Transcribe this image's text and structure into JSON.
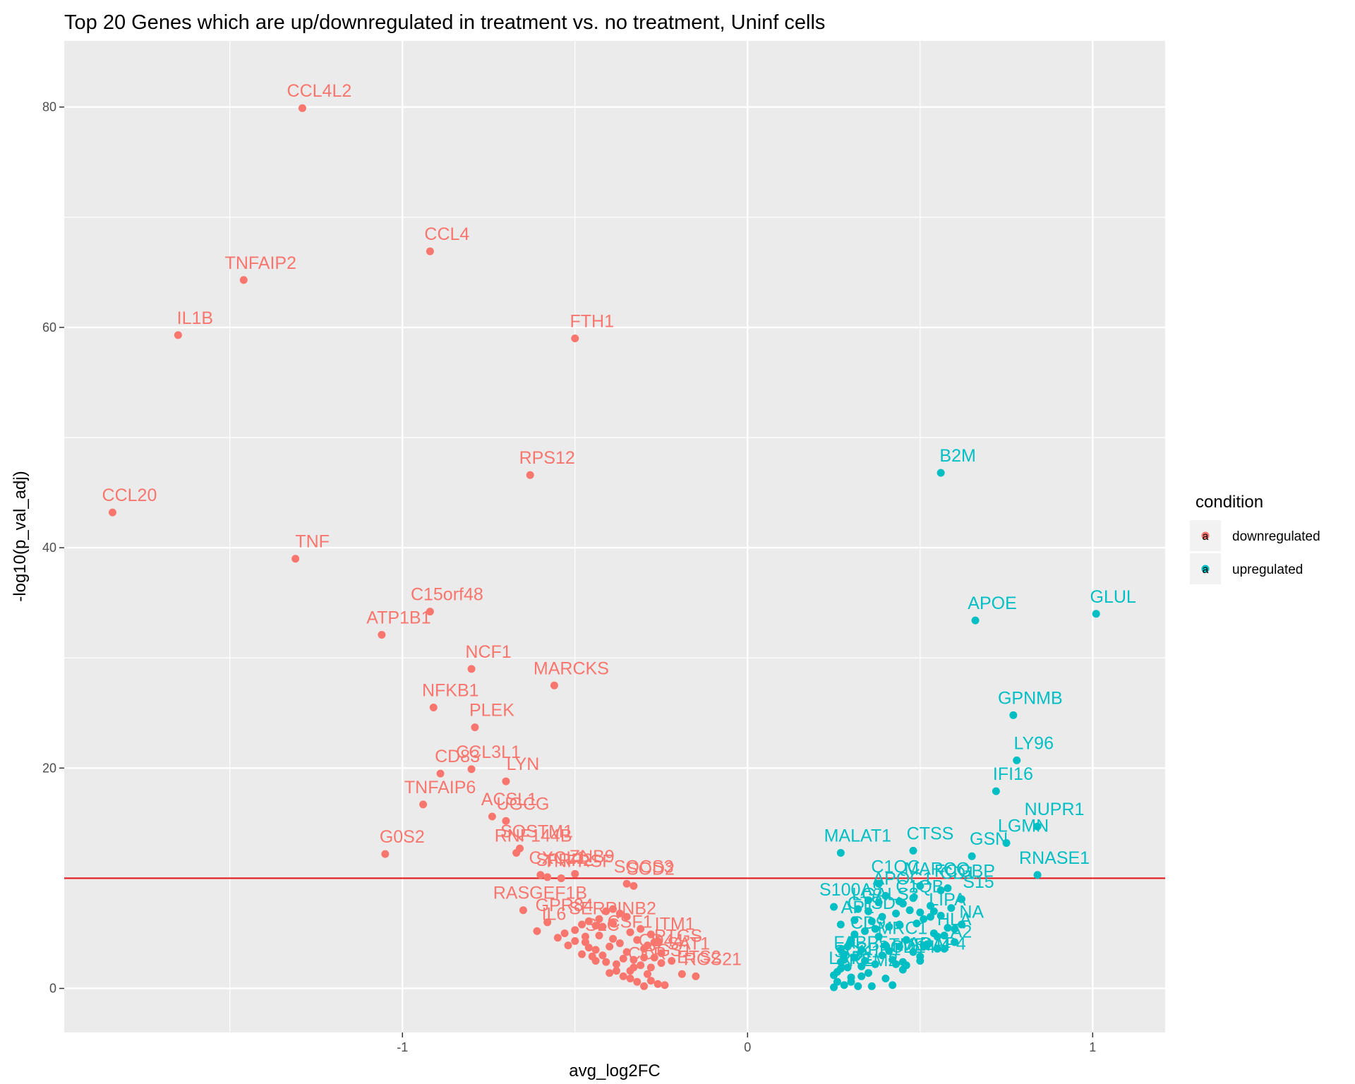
{
  "chart_data": {
    "type": "scatter",
    "title": "Top 20 Genes which are up/downregulated in treatment vs. no treatment, Uninf cells",
    "xlabel": "avg_log2FC",
    "ylabel": "-log10(p_val_adj)",
    "xlim": [
      -1.98,
      1.21
    ],
    "ylim": [
      -4,
      86
    ],
    "x_ticks": [
      -1,
      0,
      1
    ],
    "y_ticks": [
      0,
      20,
      40,
      60,
      80
    ],
    "threshold_y": 10,
    "grid": true,
    "legend": {
      "title": "condition",
      "position": "right",
      "key_glyph": "a",
      "entries": [
        {
          "label": "downregulated",
          "color": "#F8766D"
        },
        {
          "label": "upregulated",
          "color": "#00BFC4"
        }
      ]
    },
    "series": [
      {
        "name": "downregulated",
        "color": "#F8766D",
        "labeled_points": [
          {
            "label": "CCL4L2",
            "x": -1.29,
            "y": 79.9
          },
          {
            "label": "CCL4",
            "x": -0.92,
            "y": 66.9
          },
          {
            "label": "TNFAIP2",
            "x": -1.46,
            "y": 64.3
          },
          {
            "label": "IL1B",
            "x": -1.65,
            "y": 59.3
          },
          {
            "label": "FTH1",
            "x": -0.5,
            "y": 59.0
          },
          {
            "label": "RPS12",
            "x": -0.63,
            "y": 46.6
          },
          {
            "label": "CCL20",
            "x": -1.84,
            "y": 43.2
          },
          {
            "label": "TNF",
            "x": -1.31,
            "y": 39.0
          },
          {
            "label": "C15orf48",
            "x": -0.92,
            "y": 34.2
          },
          {
            "label": "ATP1B1",
            "x": -1.06,
            "y": 32.1
          },
          {
            "label": "NCF1",
            "x": -0.8,
            "y": 29.0
          },
          {
            "label": "MARCKS",
            "x": -0.56,
            "y": 27.5
          },
          {
            "label": "NFKB1",
            "x": -0.91,
            "y": 25.5
          },
          {
            "label": "PLEK",
            "x": -0.79,
            "y": 23.7
          },
          {
            "label": "CCL3L1",
            "x": -0.8,
            "y": 19.9
          },
          {
            "label": "CD83",
            "x": -0.89,
            "y": 19.5
          },
          {
            "label": "LYN",
            "x": -0.7,
            "y": 18.8
          },
          {
            "label": "TNFAIP6",
            "x": -0.94,
            "y": 16.7
          },
          {
            "label": "ACSL1",
            "x": -0.74,
            "y": 15.6
          },
          {
            "label": "UGCG",
            "x": -0.7,
            "y": 15.2
          },
          {
            "label": "SQSTM1",
            "x": -0.66,
            "y": 12.7
          },
          {
            "label": "RNF144B",
            "x": -0.67,
            "y": 12.3
          },
          {
            "label": "G0S2",
            "x": -1.05,
            "y": 12.2
          },
          {
            "label": "SFRP2",
            "x": -0.58,
            "y": 10.1
          },
          {
            "label": "TNFRSF",
            "x": -0.54,
            "y": 10.0
          },
          {
            "label": "CXCL1",
            "x": -0.6,
            "y": 10.3
          },
          {
            "label": "ZNB9",
            "x": -0.5,
            "y": 10.4
          },
          {
            "label": "SOCS3",
            "x": -0.35,
            "y": 9.5
          },
          {
            "label": "SOD2",
            "x": -0.33,
            "y": 9.3
          },
          {
            "label": "RASGEF1B",
            "x": -0.65,
            "y": 7.1
          },
          {
            "label": "GPR84",
            "x": -0.58,
            "y": 6.0
          },
          {
            "label": "IL6",
            "x": -0.61,
            "y": 5.2
          },
          {
            "label": "SERPINB2",
            "x": -0.44,
            "y": 5.7
          },
          {
            "label": "CSF1",
            "x": -0.39,
            "y": 4.5
          },
          {
            "label": "SLC",
            "x": -0.47,
            "y": 4.2
          },
          {
            "label": "ITM1",
            "x": -0.26,
            "y": 4.3
          },
          {
            "label": "SAT1",
            "x": -0.22,
            "y": 2.5
          },
          {
            "label": "CD44",
            "x": -0.3,
            "y": 2.8
          },
          {
            "label": "PTGS",
            "x": -0.25,
            "y": 3.2
          },
          {
            "label": "RGS1",
            "x": -0.28,
            "y": 1.9
          },
          {
            "label": "CCR",
            "x": -0.34,
            "y": 1.6
          },
          {
            "label": "ETS2",
            "x": -0.19,
            "y": 1.3
          },
          {
            "label": "RGS21",
            "x": -0.15,
            "y": 1.1
          }
        ],
        "points": [
          [
            -0.55,
            4.6
          ],
          [
            -0.52,
            3.9
          ],
          [
            -0.5,
            5.3
          ],
          [
            -0.48,
            3.1
          ],
          [
            -0.47,
            4.7
          ],
          [
            -0.46,
            6.1
          ],
          [
            -0.45,
            2.9
          ],
          [
            -0.44,
            3.5
          ],
          [
            -0.43,
            4.8
          ],
          [
            -0.42,
            5.6
          ],
          [
            -0.41,
            2.4
          ],
          [
            -0.4,
            3.8
          ],
          [
            -0.39,
            5.9
          ],
          [
            -0.38,
            1.6
          ],
          [
            -0.37,
            4.1
          ],
          [
            -0.36,
            2.7
          ],
          [
            -0.35,
            3.3
          ],
          [
            -0.34,
            5.1
          ],
          [
            -0.33,
            1.9
          ],
          [
            -0.32,
            4.4
          ],
          [
            -0.31,
            2.1
          ],
          [
            -0.3,
            3.6
          ],
          [
            -0.29,
            1.3
          ],
          [
            -0.28,
            4.9
          ],
          [
            -0.27,
            2.8
          ],
          [
            -0.26,
            0.4
          ],
          [
            -0.3,
            0.2
          ],
          [
            -0.32,
            0.6
          ],
          [
            -0.34,
            0.9
          ],
          [
            -0.36,
            1.1
          ],
          [
            -0.38,
            2.2
          ],
          [
            -0.4,
            1.4
          ],
          [
            -0.42,
            3.0
          ],
          [
            -0.44,
            2.5
          ],
          [
            -0.46,
            3.7
          ],
          [
            -0.33,
            2.6
          ],
          [
            -0.31,
            5.4
          ],
          [
            -0.29,
            3.9
          ],
          [
            -0.27,
            4.2
          ],
          [
            -0.25,
            2.3
          ],
          [
            -0.35,
            6.5
          ],
          [
            -0.37,
            6.8
          ],
          [
            -0.39,
            7.2
          ],
          [
            -0.41,
            7.0
          ],
          [
            -0.43,
            6.3
          ],
          [
            -0.48,
            5.8
          ],
          [
            -0.5,
            4.3
          ],
          [
            -0.53,
            5.0
          ],
          [
            -0.28,
            0.7
          ],
          [
            -0.24,
            0.3
          ]
        ]
      },
      {
        "name": "upregulated",
        "color": "#00BFC4",
        "labeled_points": [
          {
            "label": "B2M",
            "x": 0.56,
            "y": 46.8
          },
          {
            "label": "APOE",
            "x": 0.66,
            "y": 33.4
          },
          {
            "label": "GLUL",
            "x": 1.01,
            "y": 34.0
          },
          {
            "label": "GPNMB",
            "x": 0.77,
            "y": 24.8
          },
          {
            "label": "LY96",
            "x": 0.78,
            "y": 20.7
          },
          {
            "label": "IFI16",
            "x": 0.72,
            "y": 17.9
          },
          {
            "label": "NUPR1",
            "x": 0.84,
            "y": 14.7
          },
          {
            "label": "LGMN",
            "x": 0.75,
            "y": 13.2
          },
          {
            "label": "MALAT1",
            "x": 0.27,
            "y": 12.3
          },
          {
            "label": "CTSS",
            "x": 0.48,
            "y": 12.5
          },
          {
            "label": "GSN",
            "x": 0.65,
            "y": 12.0
          },
          {
            "label": "RNASE1",
            "x": 0.84,
            "y": 10.3
          },
          {
            "label": "C1QC",
            "x": 0.38,
            "y": 9.5
          },
          {
            "label": "MARCO",
            "x": 0.5,
            "y": 9.3
          },
          {
            "label": "FCGBP",
            "x": 0.58,
            "y": 9.1
          },
          {
            "label": "CD1",
            "x": 0.56,
            "y": 8.9
          },
          {
            "label": "APOC1",
            "x": 0.4,
            "y": 8.4
          },
          {
            "label": "S100A8",
            "x": 0.25,
            "y": 7.4
          },
          {
            "label": "LGALS3",
            "x": 0.35,
            "y": 7.0
          },
          {
            "label": "C1QB",
            "x": 0.45,
            "y": 7.7
          },
          {
            "label": "S15",
            "x": 0.62,
            "y": 8.1
          },
          {
            "label": "CTSD",
            "x": 0.31,
            "y": 6.2
          },
          {
            "label": "LIPA",
            "x": 0.53,
            "y": 6.5
          },
          {
            "label": "AP1",
            "x": 0.27,
            "y": 5.8
          },
          {
            "label": "CD9",
            "x": 0.3,
            "y": 4.4
          },
          {
            "label": "MRC1",
            "x": 0.4,
            "y": 3.9
          },
          {
            "label": "HLA",
            "x": 0.55,
            "y": 4.7
          },
          {
            "label": "NA",
            "x": 0.6,
            "y": 5.4
          },
          {
            "label": "A2",
            "x": 0.57,
            "y": 3.6
          },
          {
            "label": "FABP5",
            "x": 0.28,
            "y": 2.6
          },
          {
            "label": "SPP1",
            "x": 0.33,
            "y": 2.0
          },
          {
            "label": "CD14",
            "x": 0.43,
            "y": 2.2
          },
          {
            "label": "SGK1",
            "x": 0.27,
            "y": 1.8
          },
          {
            "label": "LRP1",
            "x": 0.25,
            "y": 1.2
          },
          {
            "label": "TREM2",
            "x": 0.3,
            "y": 1.0
          },
          {
            "label": "TMEM4",
            "x": 0.45,
            "y": 2.4
          },
          {
            "label": "ADAP4",
            "x": 0.5,
            "y": 2.5
          }
        ],
        "points": [
          [
            0.25,
            0.1
          ],
          [
            0.26,
            0.6
          ],
          [
            0.27,
            2.4
          ],
          [
            0.28,
            3.1
          ],
          [
            0.29,
            1.9
          ],
          [
            0.3,
            4.1
          ],
          [
            0.31,
            2.8
          ],
          [
            0.32,
            0.2
          ],
          [
            0.33,
            3.5
          ],
          [
            0.34,
            5.2
          ],
          [
            0.35,
            1.4
          ],
          [
            0.36,
            6.1
          ],
          [
            0.37,
            2.2
          ],
          [
            0.38,
            4.7
          ],
          [
            0.39,
            3.0
          ],
          [
            0.4,
            0.9
          ],
          [
            0.41,
            5.6
          ],
          [
            0.42,
            2.6
          ],
          [
            0.43,
            6.8
          ],
          [
            0.44,
            3.8
          ],
          [
            0.45,
            1.7
          ],
          [
            0.46,
            4.4
          ],
          [
            0.47,
            7.1
          ],
          [
            0.48,
            3.3
          ],
          [
            0.49,
            5.9
          ],
          [
            0.5,
            2.9
          ],
          [
            0.51,
            6.3
          ],
          [
            0.52,
            4.0
          ],
          [
            0.53,
            7.5
          ],
          [
            0.54,
            5.0
          ],
          [
            0.55,
            3.6
          ],
          [
            0.56,
            6.6
          ],
          [
            0.57,
            4.8
          ],
          [
            0.58,
            5.5
          ],
          [
            0.6,
            4.2
          ],
          [
            0.26,
            1.5
          ],
          [
            0.28,
            0.3
          ],
          [
            0.3,
            0.6
          ],
          [
            0.33,
            1.1
          ],
          [
            0.36,
            0.2
          ],
          [
            0.42,
            0.3
          ],
          [
            0.29,
            3.8
          ],
          [
            0.31,
            4.9
          ],
          [
            0.34,
            2.5
          ],
          [
            0.37,
            5.4
          ],
          [
            0.39,
            6.5
          ],
          [
            0.41,
            3.4
          ],
          [
            0.44,
            7.9
          ],
          [
            0.46,
            2.1
          ],
          [
            0.48,
            8.2
          ],
          [
            0.51,
            3.9
          ],
          [
            0.32,
            7.2
          ],
          [
            0.35,
            8.0
          ],
          [
            0.38,
            7.8
          ],
          [
            0.44,
            5.8
          ],
          [
            0.5,
            6.9
          ],
          [
            0.54,
            7.0
          ],
          [
            0.59,
            7.3
          ],
          [
            0.62,
            5.8
          ],
          [
            0.27,
            3.5
          ]
        ]
      }
    ]
  }
}
